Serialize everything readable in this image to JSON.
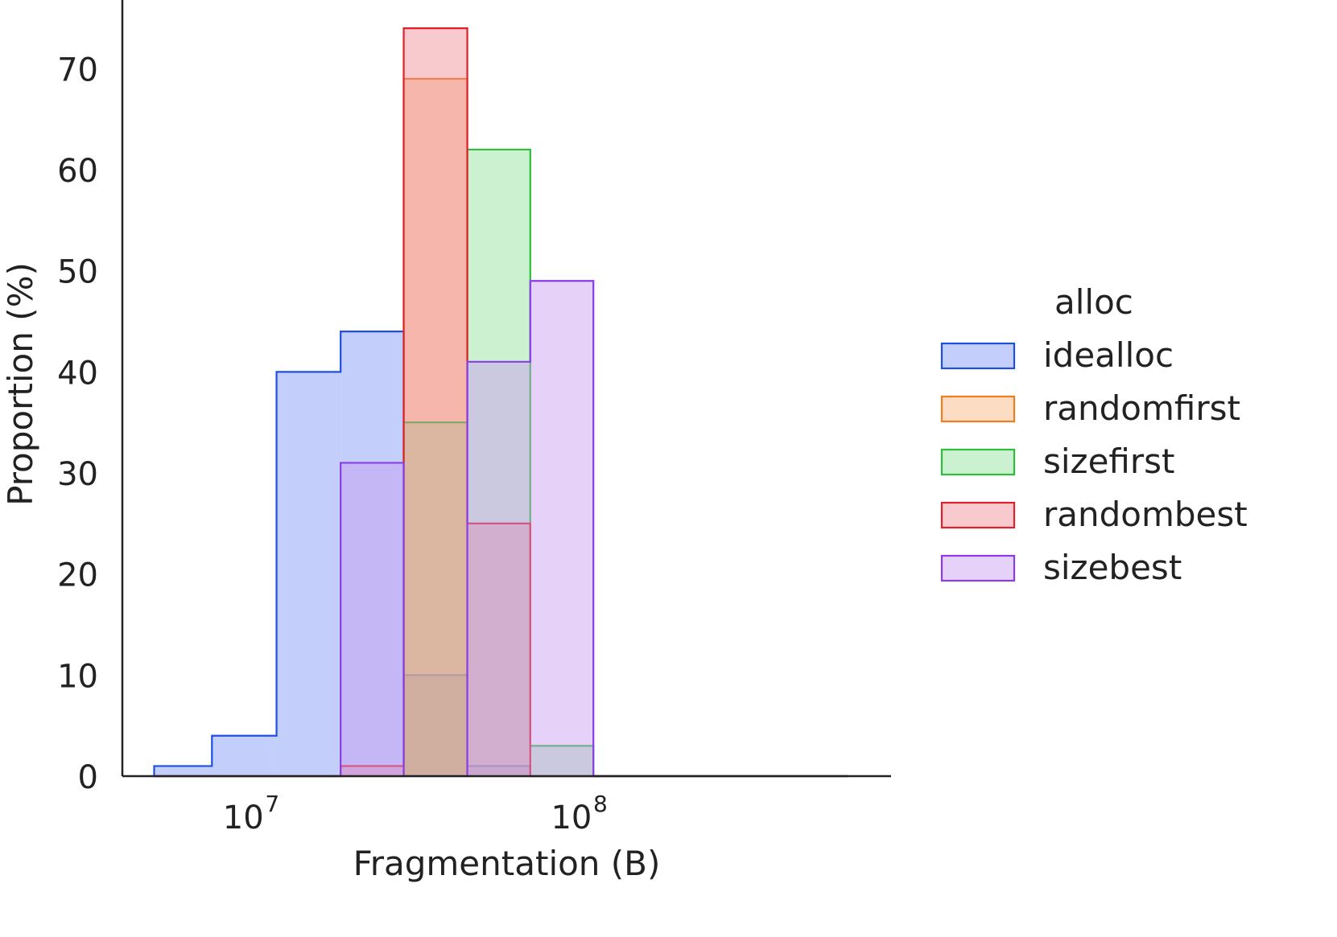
{
  "chart_data": {
    "type": "histogram",
    "xscale": "log",
    "xlabel": "Fragmentation (B)",
    "ylabel": "Proportion (%)",
    "ylim": [
      0,
      76
    ],
    "xlim": [
      4000000,
      880000000
    ],
    "yticks": [
      0,
      10,
      20,
      30,
      40,
      50,
      60,
      70
    ],
    "xticks": [
      {
        "value": 10000000,
        "label": "10",
        "exp": "7"
      },
      {
        "value": 100000000,
        "label": "10",
        "exp": "8"
      }
    ],
    "grid": false,
    "legend": {
      "title": "alloc",
      "position": "right-outside"
    },
    "bin_edges": [
      5000000,
      7500000,
      11800000,
      18500000,
      28800000,
      45000000,
      70000000,
      109000000,
      170000000,
      266000000,
      415000000,
      650000000
    ],
    "series": [
      {
        "name": "idealloc",
        "stroke": "#1f4fe0",
        "fill": "#7b95f5",
        "values": [
          1,
          4,
          40,
          44,
          10,
          1,
          0,
          0,
          0,
          0,
          0
        ]
      },
      {
        "name": "randomfirst",
        "stroke": "#f07d1e",
        "fill": "#f9b27a",
        "values": [
          0,
          0,
          0,
          0,
          69,
          0,
          0,
          0,
          0,
          0,
          0
        ]
      },
      {
        "name": "sizefirst",
        "stroke": "#2ebf3a",
        "fill": "#8ee09a",
        "values": [
          0,
          0,
          0,
          0,
          35,
          62,
          3,
          0,
          0,
          0,
          0
        ]
      },
      {
        "name": "randombest",
        "stroke": "#e0202a",
        "fill": "#f08890",
        "values": [
          0,
          0,
          0,
          1,
          74,
          25,
          0,
          0,
          0,
          0,
          0
        ]
      },
      {
        "name": "sizebest",
        "stroke": "#8a3de6",
        "fill": "#c79af0",
        "values": [
          0,
          0,
          0,
          31,
          0,
          41,
          49,
          0,
          0,
          0,
          0
        ]
      }
    ]
  }
}
